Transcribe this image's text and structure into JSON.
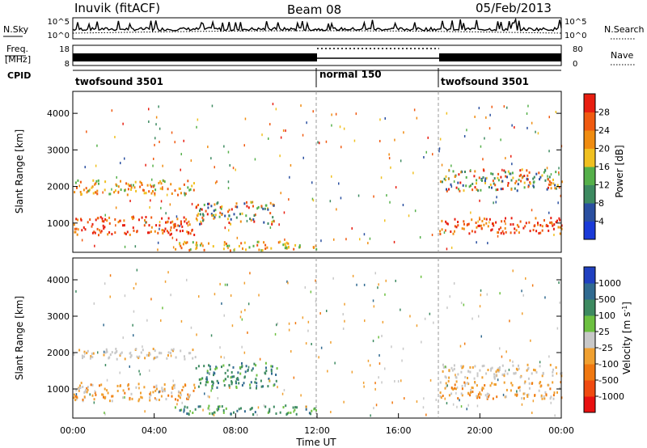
{
  "header": {
    "station": "Inuvik (fitACF)",
    "beam": "Beam 08",
    "date": "05/Feb/2013"
  },
  "noise_panel": {
    "left_label": "N.Sky",
    "left_ticks": [
      "10^5",
      "10^0"
    ],
    "right_label": "N.Search",
    "right_ticks": [
      "10^5",
      "10^0"
    ]
  },
  "freq_panel": {
    "left_label_line1": "Freq.",
    "left_label_line2": "[MHz]",
    "left_ticks": [
      "18",
      "8"
    ],
    "right_label": "Nave",
    "right_ticks": [
      "80",
      "0"
    ]
  },
  "cpid_panel": {
    "label": "CPID",
    "segments": [
      {
        "name": "twofsound 3501",
        "start": 0,
        "end": 12
      },
      {
        "name": "normal 150",
        "start": 12,
        "end": 18
      },
      {
        "name": "twofsound 3501",
        "start": 18,
        "end": 24
      }
    ]
  },
  "colors": {
    "power_scale": [
      "#1a3ad8",
      "#2a4fa0",
      "#3d8a60",
      "#55b04a",
      "#f0c020",
      "#f08c10",
      "#f05a10",
      "#e81e10"
    ],
    "velocity_scale": [
      "#2040c0",
      "#306a90",
      "#3d8a60",
      "#6cc040",
      "#c8c8c8",
      "#f0a030",
      "#f07810",
      "#f04a10",
      "#e81010"
    ]
  },
  "chart_data": [
    {
      "type": "heatmap",
      "panel": "power",
      "ylabel": "Slant Range [km]",
      "ylim": [
        200,
        4600
      ],
      "yticks": [
        "1000",
        "2000",
        "3000",
        "4000"
      ],
      "xlim": [
        0,
        24
      ],
      "colorbar_label": "Power [dB]",
      "colorbar_ticks": [
        "28",
        "24",
        "20",
        "16",
        "12",
        "8",
        "4"
      ],
      "mode_change_lines_hours": [
        12,
        18
      ],
      "features": [
        {
          "t_start": 0,
          "t_end": 6,
          "range_center": 950,
          "range_width": 500,
          "level": "high"
        },
        {
          "t_start": 0,
          "t_end": 6,
          "range_center": 2000,
          "range_width": 400,
          "level": "mid"
        },
        {
          "t_start": 5,
          "t_end": 12,
          "range_center": 400,
          "range_width": 250,
          "level": "mid"
        },
        {
          "t_start": 6,
          "t_end": 10,
          "range_center": 1300,
          "range_width": 600,
          "level": "mixed"
        },
        {
          "t_start": 18,
          "t_end": 24,
          "range_center": 950,
          "range_width": 450,
          "level": "high"
        },
        {
          "t_start": 18,
          "t_end": 24,
          "range_center": 2200,
          "range_width": 600,
          "level": "mixed"
        }
      ]
    },
    {
      "type": "heatmap",
      "panel": "velocity",
      "ylabel": "Slant Range [km]",
      "ylim": [
        200,
        4600
      ],
      "yticks": [
        "1000",
        "2000",
        "3000",
        "4000"
      ],
      "xlim": [
        0,
        24
      ],
      "xticks": [
        "00:00",
        "04:00",
        "08:00",
        "12:00",
        "16:00",
        "20:00",
        "00:00"
      ],
      "xlabel": "Time UT",
      "colorbar_label": "Velocity [m s^-1]",
      "colorbar_ticks": [
        "1000",
        "500",
        "100",
        "25",
        "-25",
        "-100",
        "-500",
        "-1000"
      ],
      "mode_change_lines_hours": [
        12,
        18
      ],
      "features": [
        {
          "t_start": 0,
          "t_end": 6,
          "range_center": 950,
          "range_width": 500,
          "velocity": "-100"
        },
        {
          "t_start": 0,
          "t_end": 6,
          "range_center": 2000,
          "range_width": 300,
          "velocity": "-25"
        },
        {
          "t_start": 6,
          "t_end": 10,
          "range_center": 1400,
          "range_width": 700,
          "velocity": "100"
        },
        {
          "t_start": 5,
          "t_end": 12,
          "range_center": 450,
          "range_width": 250,
          "velocity": "100"
        },
        {
          "t_start": 18,
          "t_end": 24,
          "range_center": 1000,
          "range_width": 500,
          "velocity": "-100"
        },
        {
          "t_start": 18,
          "t_end": 24,
          "range_center": 1500,
          "range_width": 400,
          "velocity": "-25"
        }
      ]
    }
  ]
}
